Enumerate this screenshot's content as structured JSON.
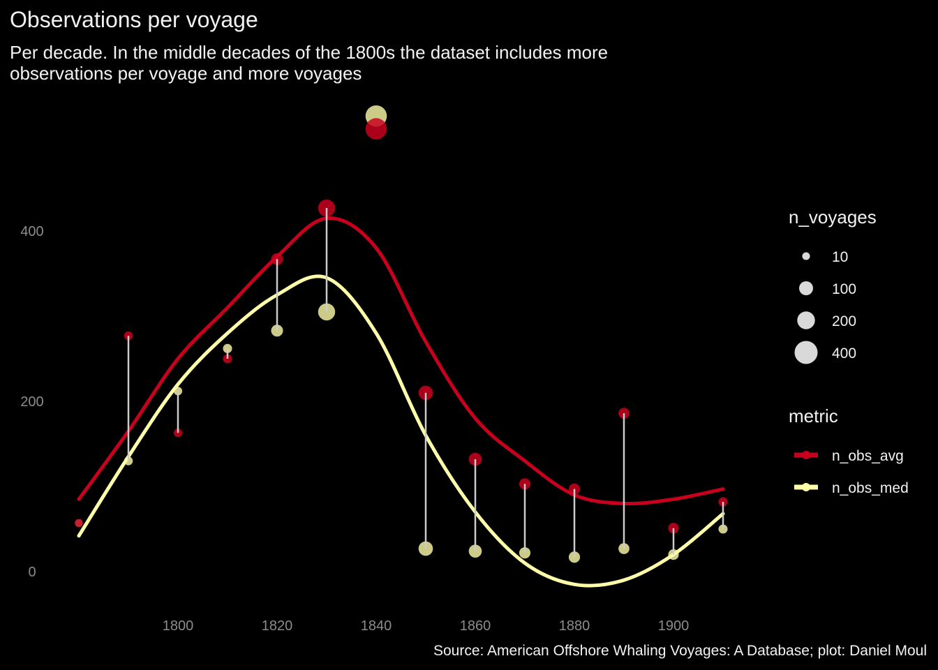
{
  "title": "Observations per voyage",
  "subtitle": "Per decade. In the middle decades of the 1800s the dataset includes more observations per voyage and more voyages",
  "caption": "Source: American Offshore Whaling Voyages: A Database; plot: Daniel Moul",
  "colors": {
    "background": "#000000",
    "n_obs_avg": "#c8001e",
    "n_obs_med": "#ffffaa",
    "segment": "#cccccc",
    "axis_text": "#8c8c8c"
  },
  "legend": {
    "size_title": "n_voyages",
    "size_items": [
      {
        "label": "10",
        "value": 10
      },
      {
        "label": "100",
        "value": 100
      },
      {
        "label": "200",
        "value": 200
      },
      {
        "label": "400",
        "value": 400
      }
    ],
    "metric_title": "metric",
    "metric_items": [
      {
        "label": "n_obs_avg",
        "color": "#c8001e"
      },
      {
        "label": "n_obs_med",
        "color": "#ffffaa"
      }
    ]
  },
  "chart_data": {
    "type": "scatter",
    "title": "Observations per voyage",
    "subtitle": "Per decade. In the middle decades of the 1800s the dataset includes more observations per voyage and more voyages",
    "xlabel": "",
    "ylabel": "",
    "x_ticks": [
      1800,
      1820,
      1840,
      1860,
      1880,
      1900
    ],
    "y_ticks": [
      0,
      200,
      400
    ],
    "xlim": [
      1775,
      1915
    ],
    "ylim": [
      -60,
      590
    ],
    "grid": false,
    "legend_position": "right",
    "points": [
      {
        "decade": 1780,
        "n_obs_avg": 57,
        "n_obs_med": 57,
        "n_voyages": 10
      },
      {
        "decade": 1790,
        "n_obs_avg": 277,
        "n_obs_med": 130,
        "n_voyages": 18
      },
      {
        "decade": 1800,
        "n_obs_avg": 163,
        "n_obs_med": 212,
        "n_voyages": 16
      },
      {
        "decade": 1810,
        "n_obs_avg": 250,
        "n_obs_med": 262,
        "n_voyages": 22
      },
      {
        "decade": 1820,
        "n_obs_avg": 367,
        "n_obs_med": 283,
        "n_voyages": 60
      },
      {
        "decade": 1830,
        "n_obs_avg": 427,
        "n_obs_med": 305,
        "n_voyages": 180
      },
      {
        "decade": 1840,
        "n_obs_avg": 520,
        "n_obs_med": 535,
        "n_voyages": 330
      },
      {
        "decade": 1850,
        "n_obs_avg": 210,
        "n_obs_med": 27,
        "n_voyages": 110
      },
      {
        "decade": 1860,
        "n_obs_avg": 132,
        "n_obs_med": 24,
        "n_voyages": 80
      },
      {
        "decade": 1870,
        "n_obs_avg": 103,
        "n_obs_med": 22,
        "n_voyages": 50
      },
      {
        "decade": 1880,
        "n_obs_avg": 97,
        "n_obs_med": 17,
        "n_voyages": 50
      },
      {
        "decade": 1890,
        "n_obs_avg": 186,
        "n_obs_med": 27,
        "n_voyages": 45
      },
      {
        "decade": 1900,
        "n_obs_avg": 51,
        "n_obs_med": 20,
        "n_voyages": 40
      },
      {
        "decade": 1910,
        "n_obs_avg": 82,
        "n_obs_med": 50,
        "n_voyages": 22
      }
    ],
    "series": [
      {
        "name": "n_obs_avg",
        "smooth": [
          [
            1780,
            85
          ],
          [
            1790,
            165
          ],
          [
            1800,
            250
          ],
          [
            1810,
            310
          ],
          [
            1820,
            370
          ],
          [
            1830,
            415
          ],
          [
            1840,
            380
          ],
          [
            1850,
            270
          ],
          [
            1860,
            180
          ],
          [
            1870,
            130
          ],
          [
            1880,
            90
          ],
          [
            1890,
            80
          ],
          [
            1900,
            85
          ],
          [
            1910,
            97
          ]
        ]
      },
      {
        "name": "n_obs_med",
        "smooth": [
          [
            1780,
            42
          ],
          [
            1790,
            135
          ],
          [
            1800,
            220
          ],
          [
            1810,
            280
          ],
          [
            1820,
            325
          ],
          [
            1830,
            345
          ],
          [
            1840,
            280
          ],
          [
            1850,
            160
          ],
          [
            1860,
            70
          ],
          [
            1870,
            10
          ],
          [
            1880,
            -15
          ],
          [
            1890,
            -10
          ],
          [
            1900,
            20
          ],
          [
            1910,
            68
          ]
        ]
      }
    ]
  }
}
